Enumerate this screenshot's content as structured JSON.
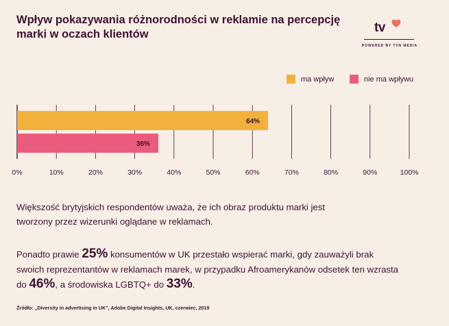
{
  "title": "Wpływ pokazywania różnorodności w reklamie na percepcję marki w oczach klientów",
  "logo": {
    "text": "tv",
    "tagline": "POWERED BY TVN MEDIA"
  },
  "colors": {
    "impact": "#f2b13d",
    "no_impact": "#eb5b7d",
    "text": "#3b1232",
    "background": "#f7efe6",
    "grid": "#3b1232"
  },
  "chart_data": {
    "type": "bar",
    "orientation": "horizontal",
    "series": [
      {
        "name": "ma wpływ",
        "values": [
          64
        ],
        "label": "64%"
      },
      {
        "name": "nie ma wpływu",
        "values": [
          36
        ],
        "label": "36%"
      }
    ],
    "xlim": [
      0,
      100
    ],
    "xticks": [
      "0%",
      "10%",
      "20%",
      "30%",
      "40%",
      "50%",
      "60%",
      "70%",
      "80%",
      "90%",
      "100%"
    ],
    "xtick_values": [
      0,
      10,
      20,
      30,
      40,
      50,
      60,
      70,
      80,
      90,
      100
    ],
    "grid": true,
    "legend": "top-right"
  },
  "paragraph1": "Większość brytyjskich respondentów uważa, że ich obraz produktu marki jest tworzony przez wizerunki oglądane w reklamach.",
  "paragraph2": {
    "part1": "Ponadto prawie ",
    "value1": "25%",
    "part2": " konsumentów w UK przestało wspierać marki, gdy zauważyli brak swoich reprezentantów w reklamach marek, w przypadku Afroamerykanów odsetek ten wzrasta do ",
    "value2": "46%",
    "part3": ", a środowiska LGBTQ+ do ",
    "value3": "33%",
    "part4": "."
  },
  "source": "Źródło: „Diversity in advertising in UK\", Adobe Digital Insights, UK, czerwiec, 2019"
}
